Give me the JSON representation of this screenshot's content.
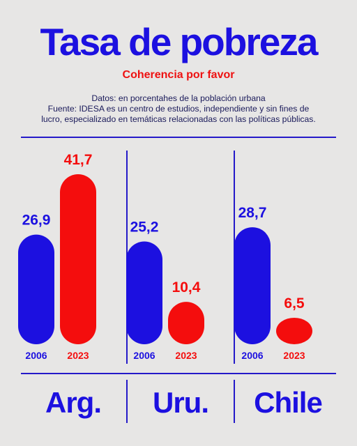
{
  "header": {
    "title": "Tasa de pobreza",
    "subtitle": "Coherencia por favor",
    "notes": [
      "Datos: en porcentahes de la población urbana",
      "Fuente: IDESA es un centro de estudios, independiente y sin fines de",
      "lucro, especializado en temáticas relacionadas con las políticas públicas."
    ]
  },
  "colors": {
    "blue": "#1c10e0",
    "red": "#f40d0d"
  },
  "chart_data": {
    "type": "bar",
    "groups": [
      "Arg.",
      "Uru.",
      "Chile"
    ],
    "series": [
      {
        "name": "2006",
        "values": [
          26.9,
          25.2,
          28.7
        ],
        "labels": [
          "26,9",
          "25,2",
          "28,7"
        ]
      },
      {
        "name": "2023",
        "values": [
          41.7,
          10.4,
          6.5
        ],
        "labels": [
          "41,7",
          "10,4",
          "6,5"
        ]
      }
    ],
    "ylim": [
      0,
      41.7
    ]
  }
}
